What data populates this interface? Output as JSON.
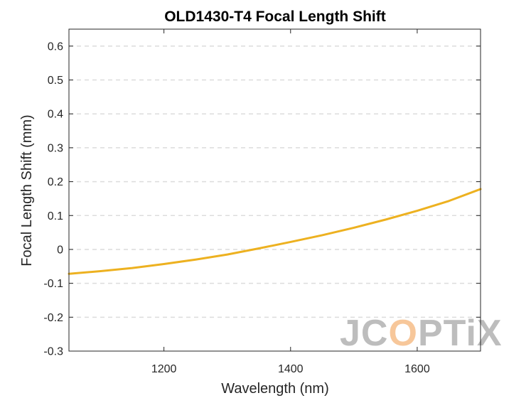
{
  "chart_data": {
    "type": "line",
    "title": "OLD1430-T4 Focal Length Shift",
    "xlabel": "Wavelength (nm)",
    "ylabel": "Focal Length Shift (mm)",
    "xlim": [
      1050,
      1700
    ],
    "ylim": [
      -0.3,
      0.65
    ],
    "xticks": [
      1200,
      1400,
      1600
    ],
    "xtick_labels": [
      "1200",
      "1400",
      "1600"
    ],
    "yticks": [
      -0.3,
      -0.2,
      -0.1,
      0,
      0.1,
      0.2,
      0.3,
      0.4,
      0.5,
      0.6
    ],
    "ytick_labels": [
      "-0.3",
      "-0.2",
      "-0.1",
      "0",
      "0.1",
      "0.2",
      "0.3",
      "0.4",
      "0.5",
      "0.6"
    ],
    "grid": "horizontal dashed",
    "series": [
      {
        "color": "#EDB120",
        "x": [
          1050,
          1100,
          1150,
          1200,
          1250,
          1300,
          1350,
          1400,
          1450,
          1500,
          1550,
          1600,
          1650,
          1700
        ],
        "y": [
          -0.072,
          -0.064,
          -0.055,
          -0.043,
          -0.03,
          -0.015,
          0.003,
          0.022,
          0.042,
          0.064,
          0.088,
          0.114,
          0.143,
          0.178
        ]
      }
    ]
  },
  "watermark": {
    "text_part1": "JC",
    "text_part2": "O",
    "text_part3": "PTiX",
    "color_gray": "#bdbdbd",
    "color_orange": "#f7c79a"
  }
}
